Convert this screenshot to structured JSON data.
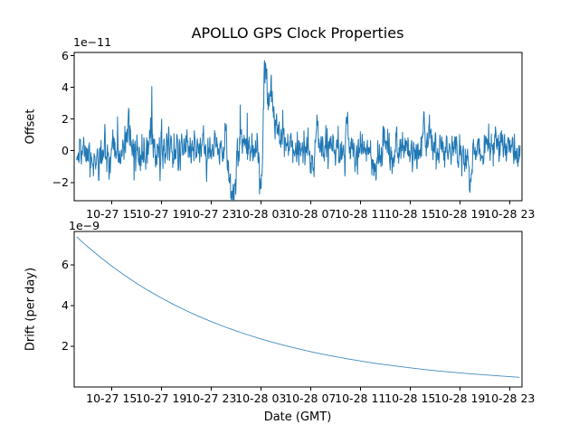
{
  "figure": {
    "title": "APOLLO GPS Clock Properties",
    "background": "#ffffff",
    "accent_line_color": "#1f77b4"
  },
  "chart_data": [
    {
      "type": "line",
      "title": "APOLLO GPS Clock Properties",
      "ylabel": "Offset",
      "offset_text": "1e−11",
      "y_unit_scale": 1e-11,
      "xlim_hours": [
        0,
        36
      ],
      "x_epoch": "hours after 10-27 12:00 GMT",
      "xtick_hours": [
        3,
        7,
        11,
        15,
        19,
        23,
        27,
        31,
        35
      ],
      "xtick_labels": [
        "10-27 15",
        "10-27 19",
        "10-27 23",
        "10-28 03",
        "10-28 07",
        "10-28 11",
        "10-28 15",
        "10-28 19",
        "10-28 23"
      ],
      "ytick_values": [
        -2,
        0,
        2,
        4,
        6
      ],
      "ytick_labels": [
        "−2",
        "0",
        "2",
        "4",
        "6"
      ],
      "ylim": [
        -3.15,
        6.2
      ],
      "line_color": "#1f77b4",
      "grid": false,
      "legend": null,
      "description": "Clock offset noise (units 1e-11 s): zero-mean band of ~±1 with transient events; deep dip to ~-2.9 near 10-28 00:45, sharp spike peaking ~5.7 near 10-28 03:20 with decaying shoulder, smaller spikes ~2-2.5 elsewhere.",
      "series_model": {
        "kind": "seeded_noise_with_gaussian_events",
        "n_points": 1400,
        "t_range": [
          0.2,
          35.85
        ],
        "seed": 11,
        "noise_ar": 0.45,
        "noise_sigma": 0.52,
        "heavy_tail_p": 0.04,
        "heavy_tail_mult": 2.0,
        "events": [
          {
            "t": 2.0,
            "amp": -0.8,
            "w": 0.3
          },
          {
            "t": 4.35,
            "amp": 1.9,
            "w": 0.1
          },
          {
            "t": 6.1,
            "amp": 1.1,
            "w": 0.1
          },
          {
            "t": 9.0,
            "amp": 1.0,
            "w": 0.1
          },
          {
            "t": 12.2,
            "amp": 2.0,
            "w": 0.07
          },
          {
            "t": 12.75,
            "amp": -2.6,
            "w": 0.28
          },
          {
            "t": 13.6,
            "amp": 0.9,
            "w": 0.35
          },
          {
            "t": 15.05,
            "amp": -1.8,
            "w": 0.12
          },
          {
            "t": 15.35,
            "amp": 5.5,
            "w": 0.11
          },
          {
            "t": 15.75,
            "amp": 3.2,
            "w": 0.22
          },
          {
            "t": 16.35,
            "amp": 1.1,
            "w": 0.4
          },
          {
            "t": 19.55,
            "amp": 2.0,
            "w": 0.08
          },
          {
            "t": 21.95,
            "amp": 2.1,
            "w": 0.09
          },
          {
            "t": 24.2,
            "amp": -1.4,
            "w": 0.12
          },
          {
            "t": 28.1,
            "amp": 2.2,
            "w": 0.08
          },
          {
            "t": 28.55,
            "amp": 1.5,
            "w": 0.08
          },
          {
            "t": 31.8,
            "amp": -1.7,
            "w": 0.1
          },
          {
            "t": 34.0,
            "amp": 0.8,
            "w": 0.2
          }
        ]
      }
    },
    {
      "type": "line",
      "title": "",
      "ylabel": "Drift (per day)",
      "xlabel": "Date (GMT)",
      "offset_text": "1e−9",
      "y_unit_scale": 1e-09,
      "xlim_hours": [
        0,
        36
      ],
      "xtick_hours": [
        3,
        7,
        11,
        15,
        19,
        23,
        27,
        31,
        35
      ],
      "xtick_labels": [
        "10-27 15",
        "10-27 19",
        "10-27 23",
        "10-28 03",
        "10-28 07",
        "10-28 11",
        "10-28 15",
        "10-28 19",
        "10-28 23"
      ],
      "ytick_values": [
        2,
        4,
        6
      ],
      "ytick_labels": [
        "2",
        "4",
        "6"
      ],
      "ylim": [
        0,
        7.65
      ],
      "line_color": "#1f77b4",
      "grid": false,
      "legend": null,
      "description": "Clock drift per day (units 1e-9): smooth exponential decay 7.5*exp(-t/13) from ~7.4 at left edge to ~0.48 at right edge.",
      "x": [
        0.2,
        1,
        2,
        3,
        4,
        5,
        6,
        7,
        8,
        9,
        10,
        11,
        12,
        13,
        14,
        15,
        16,
        17,
        18,
        19,
        20,
        21,
        22,
        23,
        24,
        25,
        26,
        27,
        28,
        29,
        30,
        31,
        32,
        33,
        34,
        35,
        35.8
      ],
      "y": [
        7.385,
        6.945,
        6.431,
        5.955,
        5.515,
        5.107,
        4.729,
        4.379,
        4.055,
        3.755,
        3.477,
        3.22,
        2.982,
        2.761,
        2.557,
        2.368,
        2.193,
        2.03,
        1.88,
        1.741,
        1.612,
        1.493,
        1.382,
        1.28,
        1.185,
        1.098,
        1.017,
        0.941,
        0.872,
        0.807,
        0.748,
        0.692,
        0.641,
        0.594,
        0.55,
        0.509,
        0.478
      ]
    }
  ]
}
